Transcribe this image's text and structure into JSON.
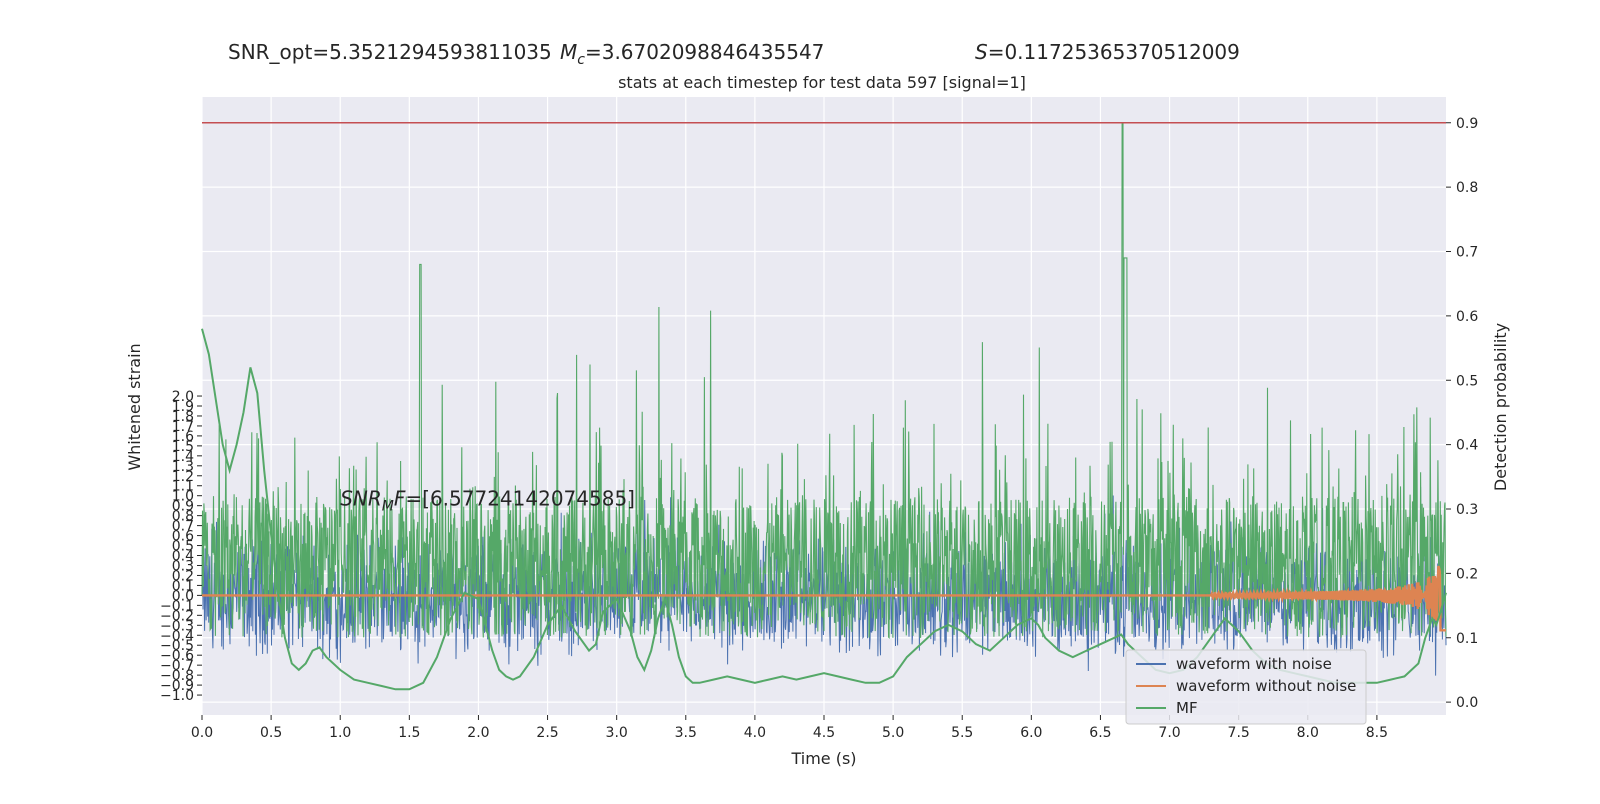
{
  "chart_data": {
    "type": "line",
    "header": {
      "snr_opt": "SNR_opt=5.3521294593811035",
      "mc_symbol": "M",
      "mc_sub": "c",
      "mc_value": "=3.6702098846435547",
      "s_symbol": "S",
      "s_value": "=0.11725365370512009"
    },
    "title": "stats at each timestep for test data 597 [signal=1]",
    "xlabel": "Time (s)",
    "ylabel_left": "Whitened strain",
    "ylabel_right": "Detection probability",
    "annotation": {
      "prefix": "SNR",
      "sub": "M",
      "mid": "F",
      "value": "=[6.57724142074585]",
      "x": 1.0,
      "y": 0.9
    },
    "xlim": [
      0.0,
      9.0
    ],
    "ylim_left": [
      -1.2,
      5.0
    ],
    "ylim_right": [
      -0.02,
      0.94
    ],
    "x_ticks": [
      "0.0",
      "0.5",
      "1.0",
      "1.5",
      "2.0",
      "2.5",
      "3.0",
      "3.5",
      "4.0",
      "4.5",
      "5.0",
      "5.5",
      "6.0",
      "6.5",
      "7.0",
      "7.5",
      "8.0",
      "8.5"
    ],
    "y_ticks_left": [
      "2.0",
      "1.9",
      "1.8",
      "1.7",
      "1.6",
      "1.5",
      "1.4",
      "1.3",
      "1.2",
      "1.1",
      "1.0",
      "0.9",
      "0.8",
      "0.7",
      "0.6",
      "0.5",
      "0.4",
      "0.3",
      "0.2",
      "0.1",
      "0.0",
      "−0.1",
      "−0.2",
      "−0.3",
      "−0.4",
      "−0.5",
      "−0.6",
      "−0.7",
      "−0.8",
      "−0.9",
      "−1.0"
    ],
    "y_ticks_right": [
      "0.9",
      "0.8",
      "0.7",
      "0.6",
      "0.5",
      "0.4",
      "0.3",
      "0.2",
      "0.1",
      "0.0"
    ],
    "threshold": 0.9,
    "legend": {
      "placement": "lower-right",
      "entries": [
        "waveform with noise",
        "waveform without noise",
        "MF"
      ]
    },
    "colors": {
      "noise": "#4c72b0",
      "clean": "#dd8452",
      "mf": "#55a868",
      "threshold": "#c44e52",
      "panel": "#eaeaf2",
      "grid": "#ffffff"
    },
    "series": [
      {
        "name": "MF",
        "axis": "right",
        "x": [
          0.0,
          0.05,
          0.1,
          0.15,
          0.2,
          0.25,
          0.3,
          0.35,
          0.4,
          0.45,
          0.5,
          0.55,
          0.6,
          0.65,
          0.7,
          0.75,
          0.8,
          0.85,
          0.9,
          1.0,
          1.1,
          1.2,
          1.3,
          1.4,
          1.5,
          1.6,
          1.7,
          1.8,
          1.9,
          2.0,
          2.05,
          2.1,
          2.15,
          2.2,
          2.25,
          2.3,
          2.4,
          2.5,
          2.6,
          2.7,
          2.8,
          2.85,
          2.9,
          3.0,
          3.1,
          3.15,
          3.2,
          3.25,
          3.3,
          3.35,
          3.4,
          3.45,
          3.5,
          3.55,
          3.6,
          3.7,
          3.8,
          3.9,
          4.0,
          4.1,
          4.2,
          4.3,
          4.4,
          4.5,
          4.6,
          4.7,
          4.8,
          4.9,
          5.0,
          5.1,
          5.2,
          5.3,
          5.4,
          5.5,
          5.6,
          5.7,
          5.8,
          5.9,
          6.0,
          6.05,
          6.1,
          6.2,
          6.3,
          6.4,
          6.5,
          6.6,
          6.65,
          6.7,
          6.8,
          6.9,
          7.0,
          7.1,
          7.2,
          7.3,
          7.4,
          7.5,
          7.6,
          7.7,
          7.8,
          7.9,
          8.0,
          8.1,
          8.2,
          8.3,
          8.4,
          8.5,
          8.6,
          8.7,
          8.8,
          8.85,
          8.9,
          8.93,
          8.96,
          9.0
        ],
        "values": [
          0.58,
          0.54,
          0.47,
          0.4,
          0.36,
          0.4,
          0.45,
          0.52,
          0.48,
          0.36,
          0.26,
          0.17,
          0.1,
          0.06,
          0.05,
          0.06,
          0.08,
          0.085,
          0.07,
          0.05,
          0.035,
          0.03,
          0.025,
          0.02,
          0.02,
          0.03,
          0.07,
          0.13,
          0.17,
          0.16,
          0.12,
          0.08,
          0.05,
          0.04,
          0.035,
          0.04,
          0.07,
          0.12,
          0.15,
          0.11,
          0.08,
          0.09,
          0.14,
          0.16,
          0.11,
          0.07,
          0.05,
          0.08,
          0.13,
          0.16,
          0.12,
          0.07,
          0.04,
          0.03,
          0.03,
          0.035,
          0.04,
          0.035,
          0.03,
          0.035,
          0.04,
          0.035,
          0.04,
          0.045,
          0.04,
          0.035,
          0.03,
          0.03,
          0.04,
          0.07,
          0.09,
          0.11,
          0.12,
          0.11,
          0.09,
          0.08,
          0.1,
          0.12,
          0.13,
          0.12,
          0.1,
          0.08,
          0.07,
          0.08,
          0.09,
          0.1,
          0.105,
          0.09,
          0.07,
          0.05,
          0.045,
          0.05,
          0.07,
          0.1,
          0.13,
          0.11,
          0.08,
          0.06,
          0.05,
          0.045,
          0.04,
          0.035,
          0.03,
          0.03,
          0.03,
          0.03,
          0.035,
          0.04,
          0.06,
          0.1,
          0.13,
          0.12,
          0.14,
          0.17
        ]
      }
    ]
  }
}
